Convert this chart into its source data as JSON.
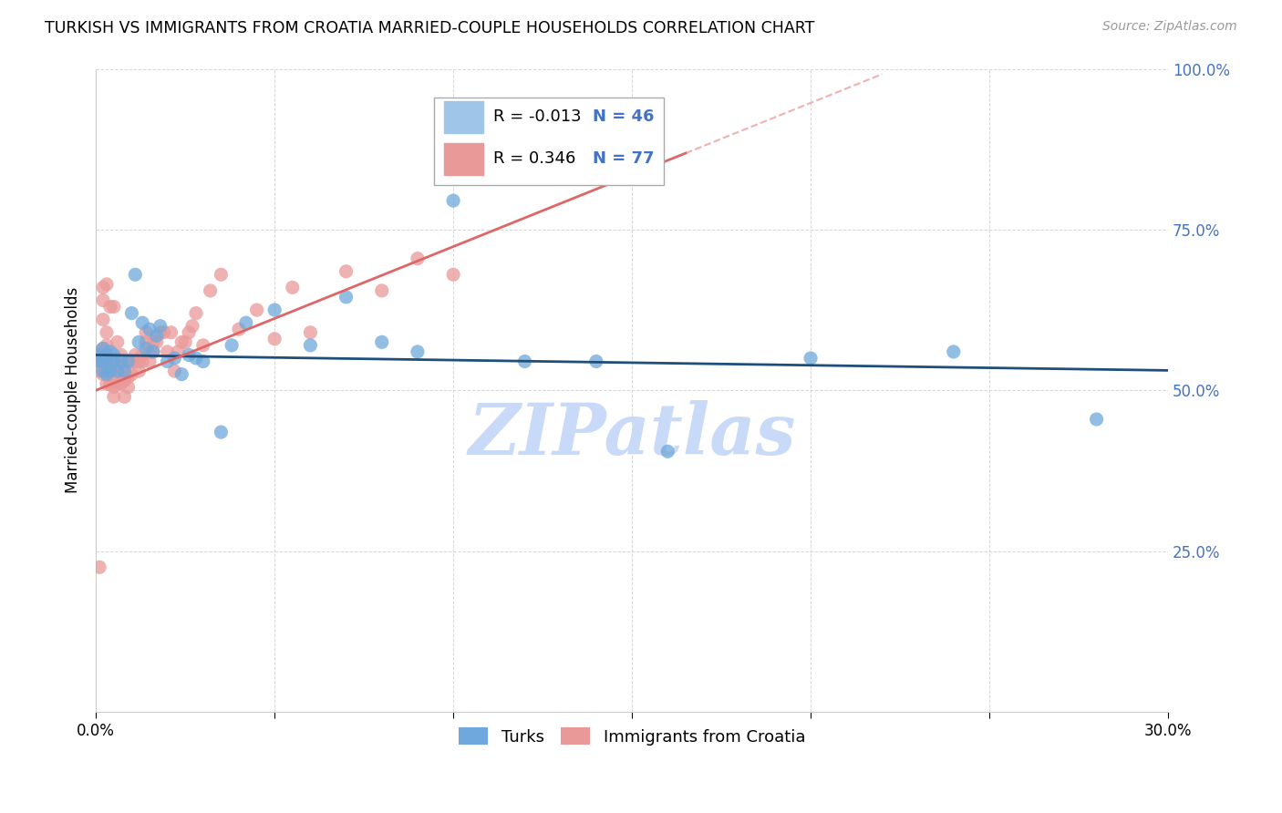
{
  "title": "TURKISH VS IMMIGRANTS FROM CROATIA MARRIED-COUPLE HOUSEHOLDS CORRELATION CHART",
  "source": "Source: ZipAtlas.com",
  "ylabel": "Married-couple Households",
  "x_min": 0.0,
  "x_max": 0.3,
  "y_min": 0.0,
  "y_max": 1.0,
  "x_ticks": [
    0.0,
    0.05,
    0.1,
    0.15,
    0.2,
    0.25,
    0.3
  ],
  "y_ticks": [
    0.0,
    0.25,
    0.5,
    0.75,
    1.0
  ],
  "y_tick_labels": [
    "",
    "25.0%",
    "50.0%",
    "75.0%",
    "100.0%"
  ],
  "turks_color": "#6fa8dc",
  "croatia_color": "#ea9999",
  "turks_line_color": "#1f4e79",
  "croatia_line_color": "#e06666",
  "legend_box_color_turks": "#9fc5e8",
  "legend_box_color_croatia": "#ea9999",
  "R_turks": "-0.013",
  "N_turks": "46",
  "R_croatia": "0.346",
  "N_croatia": "77",
  "turks_x": [
    0.001,
    0.001,
    0.002,
    0.002,
    0.002,
    0.003,
    0.003,
    0.003,
    0.004,
    0.004,
    0.005,
    0.005,
    0.006,
    0.007,
    0.008,
    0.009,
    0.01,
    0.011,
    0.012,
    0.013,
    0.014,
    0.015,
    0.016,
    0.017,
    0.018,
    0.02,
    0.022,
    0.024,
    0.026,
    0.028,
    0.03,
    0.035,
    0.038,
    0.042,
    0.05,
    0.06,
    0.07,
    0.08,
    0.09,
    0.1,
    0.12,
    0.14,
    0.16,
    0.2,
    0.24,
    0.28
  ],
  "turks_y": [
    0.545,
    0.555,
    0.53,
    0.545,
    0.565,
    0.525,
    0.545,
    0.555,
    0.53,
    0.56,
    0.545,
    0.555,
    0.53,
    0.545,
    0.53,
    0.545,
    0.62,
    0.68,
    0.575,
    0.605,
    0.565,
    0.595,
    0.56,
    0.585,
    0.6,
    0.545,
    0.55,
    0.525,
    0.555,
    0.55,
    0.545,
    0.435,
    0.57,
    0.605,
    0.625,
    0.57,
    0.645,
    0.575,
    0.56,
    0.795,
    0.545,
    0.545,
    0.405,
    0.55,
    0.56,
    0.455
  ],
  "croatia_x": [
    0.001,
    0.001,
    0.001,
    0.001,
    0.002,
    0.002,
    0.002,
    0.002,
    0.002,
    0.002,
    0.003,
    0.003,
    0.003,
    0.003,
    0.003,
    0.003,
    0.003,
    0.004,
    0.004,
    0.004,
    0.004,
    0.005,
    0.005,
    0.005,
    0.005,
    0.005,
    0.006,
    0.006,
    0.006,
    0.006,
    0.007,
    0.007,
    0.007,
    0.008,
    0.008,
    0.008,
    0.009,
    0.009,
    0.009,
    0.01,
    0.01,
    0.011,
    0.011,
    0.012,
    0.012,
    0.013,
    0.013,
    0.014,
    0.014,
    0.015,
    0.015,
    0.016,
    0.016,
    0.017,
    0.018,
    0.019,
    0.02,
    0.021,
    0.022,
    0.023,
    0.024,
    0.025,
    0.026,
    0.027,
    0.028,
    0.03,
    0.032,
    0.035,
    0.04,
    0.045,
    0.05,
    0.055,
    0.06,
    0.07,
    0.08,
    0.09,
    0.1
  ],
  "croatia_y": [
    0.225,
    0.53,
    0.545,
    0.56,
    0.525,
    0.545,
    0.565,
    0.61,
    0.64,
    0.66,
    0.51,
    0.53,
    0.545,
    0.555,
    0.57,
    0.59,
    0.665,
    0.51,
    0.53,
    0.545,
    0.63,
    0.49,
    0.505,
    0.52,
    0.545,
    0.63,
    0.51,
    0.53,
    0.545,
    0.575,
    0.51,
    0.535,
    0.555,
    0.49,
    0.515,
    0.53,
    0.505,
    0.52,
    0.545,
    0.525,
    0.545,
    0.545,
    0.555,
    0.53,
    0.545,
    0.545,
    0.555,
    0.575,
    0.59,
    0.545,
    0.56,
    0.56,
    0.575,
    0.575,
    0.59,
    0.59,
    0.56,
    0.59,
    0.53,
    0.56,
    0.575,
    0.575,
    0.59,
    0.6,
    0.62,
    0.57,
    0.655,
    0.68,
    0.595,
    0.625,
    0.58,
    0.66,
    0.59,
    0.685,
    0.655,
    0.705,
    0.68
  ],
  "background_color": "#ffffff",
  "grid_color": "#cccccc",
  "watermark_text": "ZIPatlas",
  "watermark_color": "#c9daf8",
  "right_tick_color": "#4472c4"
}
